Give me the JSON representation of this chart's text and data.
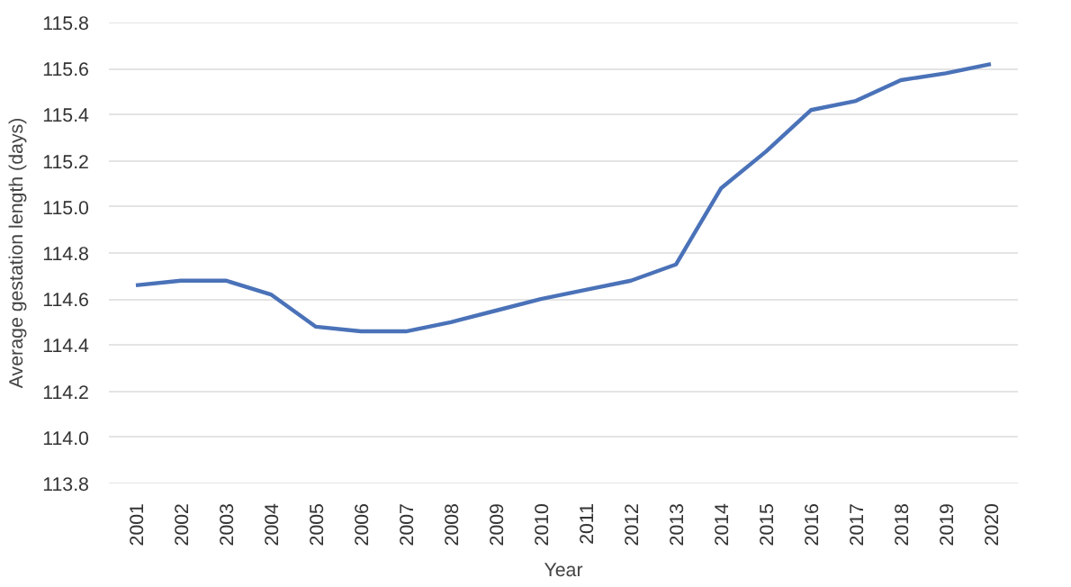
{
  "chart_data": {
    "type": "line",
    "xlabel": "Year",
    "ylabel": "Average gestation length (days)",
    "categories": [
      "2001",
      "2002",
      "2003",
      "2004",
      "2005",
      "2006",
      "2007",
      "2008",
      "2009",
      "2010",
      "2011",
      "2012",
      "2013",
      "2014",
      "2015",
      "2016",
      "2017",
      "2018",
      "2019",
      "2020"
    ],
    "series": [
      {
        "color": "#4a72b8",
        "values": [
          114.66,
          114.68,
          114.68,
          114.62,
          114.48,
          114.46,
          114.46,
          114.5,
          114.55,
          114.6,
          114.64,
          114.68,
          114.75,
          115.08,
          115.24,
          115.42,
          115.46,
          115.55,
          115.58,
          115.62
        ]
      }
    ],
    "ylim": [
      113.8,
      115.8
    ],
    "yticks": [
      113.8,
      {
        "value": 114.0,
        "label": "114.0"
      },
      114.2,
      114.4,
      114.6,
      114.8,
      {
        "value": 115.0,
        "label": "115.0"
      },
      115.2,
      115.4,
      115.6,
      115.8
    ],
    "grid": "y",
    "line_style": "solid"
  }
}
